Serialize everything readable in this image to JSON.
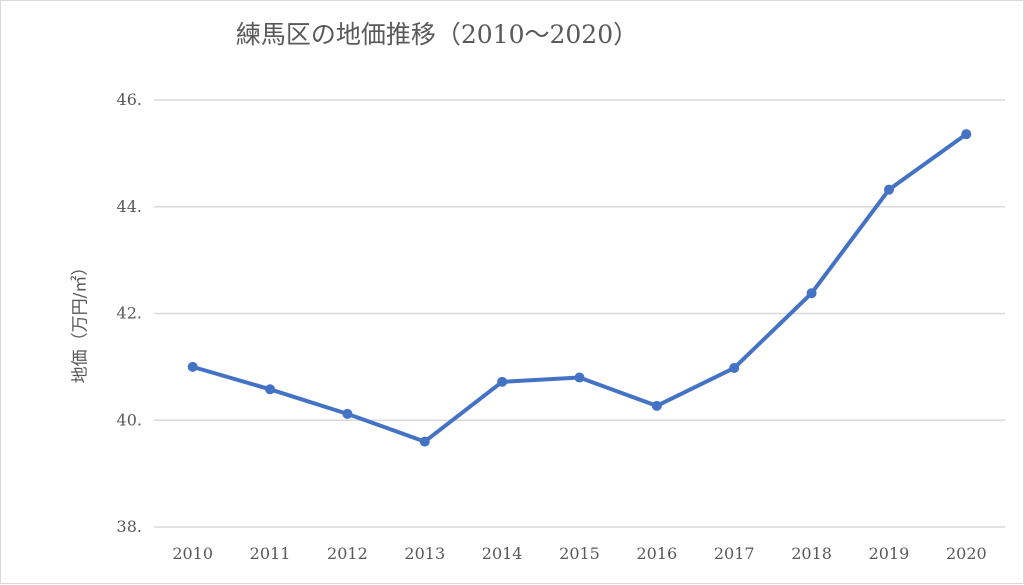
{
  "chart_data": {
    "type": "line",
    "title": "練馬区の地価推移（2010〜2020）",
    "xlabel": "",
    "ylabel": "地価（万円/㎡）",
    "x": [
      "2010",
      "2011",
      "2012",
      "2013",
      "2014",
      "2015",
      "2016",
      "2017",
      "2018",
      "2019",
      "2020"
    ],
    "series": [
      {
        "values": [
          41.0,
          40.58,
          40.12,
          39.6,
          40.72,
          40.8,
          40.27,
          40.98,
          42.38,
          44.32,
          45.36
        ]
      }
    ],
    "ylim": [
      38,
      46
    ],
    "yticks": [
      "38.",
      "40.",
      "42.",
      "44.",
      "46."
    ],
    "grid": true,
    "legend": "none",
    "colors": {
      "line": "#4472c4",
      "grid": "#d9d9d9",
      "text": "#595959"
    }
  }
}
